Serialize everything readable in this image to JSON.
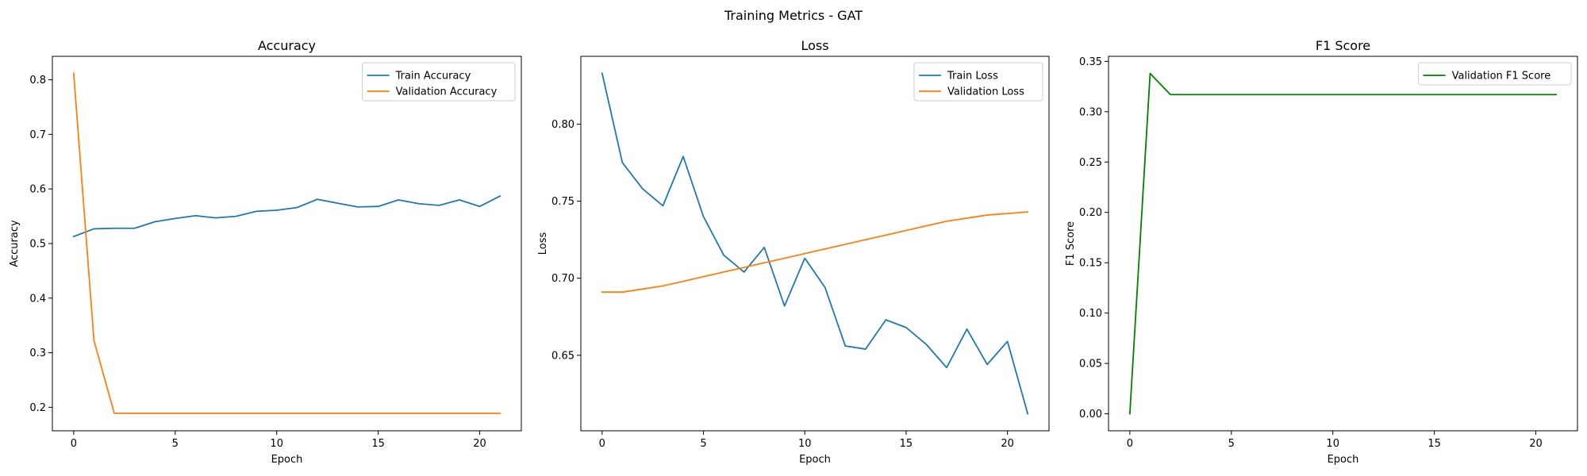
{
  "figure": {
    "suptitle": "Training Metrics - GAT"
  },
  "chart_data": [
    {
      "type": "line",
      "title": "Accuracy",
      "xlabel": "Epoch",
      "ylabel": "Accuracy",
      "xlim": [
        -1.05,
        22.05
      ],
      "ylim": [
        0.157,
        0.843
      ],
      "xticks": [
        0,
        5,
        10,
        15,
        20
      ],
      "yticks": [
        0.2,
        0.3,
        0.4,
        0.5,
        0.6,
        0.7,
        0.8
      ],
      "tick_decimals": 1,
      "legend_loc": "upper right",
      "x": [
        0,
        1,
        2,
        3,
        4,
        5,
        6,
        7,
        8,
        9,
        10,
        11,
        12,
        13,
        14,
        15,
        16,
        17,
        18,
        19,
        20,
        21
      ],
      "series": [
        {
          "name": "Train Accuracy",
          "color": "#1f77b4",
          "values": [
            0.513,
            0.527,
            0.528,
            0.528,
            0.54,
            0.546,
            0.551,
            0.547,
            0.55,
            0.559,
            0.561,
            0.566,
            0.581,
            0.574,
            0.567,
            0.568,
            0.58,
            0.573,
            0.57,
            0.58,
            0.568,
            0.587
          ]
        },
        {
          "name": "Validation Accuracy",
          "color": "#ff7f0e",
          "values": [
            0.812,
            0.322,
            0.189,
            0.189,
            0.189,
            0.189,
            0.189,
            0.189,
            0.189,
            0.189,
            0.189,
            0.189,
            0.189,
            0.189,
            0.189,
            0.189,
            0.189,
            0.189,
            0.189,
            0.189,
            0.189,
            0.189
          ]
        }
      ]
    },
    {
      "type": "line",
      "title": "Loss",
      "xlabel": "Epoch",
      "ylabel": "Loss",
      "xlim": [
        -1.05,
        22.05
      ],
      "ylim": [
        0.601,
        0.844
      ],
      "xticks": [
        0,
        5,
        10,
        15,
        20
      ],
      "yticks": [
        0.65,
        0.7,
        0.75,
        0.8
      ],
      "tick_decimals": 2,
      "legend_loc": "upper right",
      "x": [
        0,
        1,
        2,
        3,
        4,
        5,
        6,
        7,
        8,
        9,
        10,
        11,
        12,
        13,
        14,
        15,
        16,
        17,
        18,
        19,
        20,
        21
      ],
      "series": [
        {
          "name": "Train Loss",
          "color": "#1f77b4",
          "values": [
            0.833,
            0.775,
            0.758,
            0.747,
            0.779,
            0.74,
            0.715,
            0.704,
            0.72,
            0.682,
            0.713,
            0.694,
            0.656,
            0.654,
            0.673,
            0.668,
            0.657,
            0.642,
            0.667,
            0.644,
            0.659,
            0.612
          ]
        },
        {
          "name": "Validation Loss",
          "color": "#ff7f0e",
          "values": [
            0.691,
            0.691,
            0.693,
            0.695,
            0.698,
            0.701,
            0.704,
            0.707,
            0.71,
            0.713,
            0.716,
            0.719,
            0.722,
            0.725,
            0.728,
            0.731,
            0.734,
            0.737,
            0.739,
            0.741,
            0.742,
            0.743
          ]
        }
      ]
    },
    {
      "type": "line",
      "title": "F1 Score",
      "xlabel": "Epoch",
      "ylabel": "F1 Score",
      "xlim": [
        -1.05,
        22.05
      ],
      "ylim": [
        -0.0169,
        0.355
      ],
      "xticks": [
        0,
        5,
        10,
        15,
        20
      ],
      "yticks": [
        0.0,
        0.05,
        0.1,
        0.15,
        0.2,
        0.25,
        0.3,
        0.35
      ],
      "tick_decimals": 2,
      "legend_loc": "upper right",
      "x": [
        0,
        1,
        2,
        3,
        4,
        5,
        6,
        7,
        8,
        9,
        10,
        11,
        12,
        13,
        14,
        15,
        16,
        17,
        18,
        19,
        20,
        21
      ],
      "series": [
        {
          "name": "Validation F1 Score",
          "color": "#008000",
          "values": [
            0.0,
            0.338,
            0.317,
            0.317,
            0.317,
            0.317,
            0.317,
            0.317,
            0.317,
            0.317,
            0.317,
            0.317,
            0.317,
            0.317,
            0.317,
            0.317,
            0.317,
            0.317,
            0.317,
            0.317,
            0.317,
            0.317
          ]
        }
      ]
    }
  ]
}
